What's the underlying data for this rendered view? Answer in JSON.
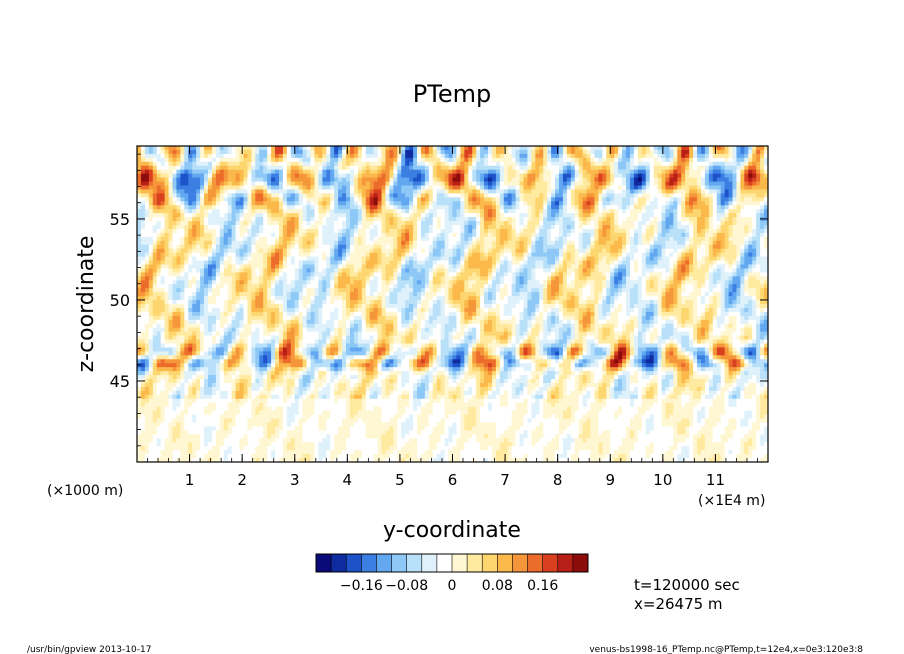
{
  "chart_data": {
    "type": "heatmap",
    "title": "PTemp",
    "xlabel": "y-coordinate",
    "ylabel": "z-coordinate",
    "x_unit_left": "(×1000 m)",
    "x_unit_right": "(×1E4 m)",
    "xlim": [
      0,
      12
    ],
    "ylim": [
      40,
      59.5
    ],
    "x_ticks": [
      1,
      2,
      3,
      4,
      5,
      6,
      7,
      8,
      9,
      10,
      11
    ],
    "y_ticks": [
      45,
      50,
      55
    ],
    "colorbar": {
      "ticks": [
        "−0.16",
        "−0.08",
        "0",
        "0.08",
        "0.16"
      ],
      "tick_values": [
        -0.16,
        -0.08,
        0,
        0.08,
        0.16
      ],
      "range": [
        -0.24,
        0.24
      ],
      "colors": [
        "#0a0a78",
        "#0f2ba0",
        "#1d52c8",
        "#3c7fe3",
        "#62a7f0",
        "#8dc8f6",
        "#b9e0f9",
        "#dff1fb",
        "#ffffff",
        "#fff6d2",
        "#ffeaa0",
        "#fdd670",
        "#fbb94b",
        "#f6963a",
        "#ec6c2c",
        "#d8401f",
        "#b81f16",
        "#8c0c0c"
      ]
    },
    "annotations": {
      "time": "t=120000 sec",
      "xpos": "x=26475 m"
    }
  },
  "footer": {
    "left": "/usr/bin/gpview   2013-10-17",
    "right": "venus-bs1998-16_PTemp.nc@PTemp,t=12e4,x=0e3:120e3:8"
  }
}
